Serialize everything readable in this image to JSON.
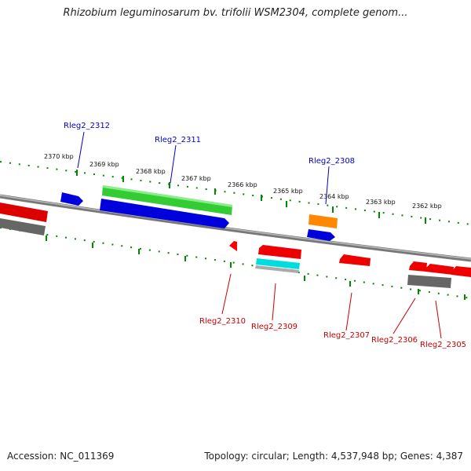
{
  "title": "Rhizobium leguminosarum bv. trifolii WSM2304, complete genom...",
  "accession": "Accession: NC_011369",
  "topology": "Topology: circular; Length: 4,537,948 bp; Genes: 4,387",
  "scale_labels": [
    "2370 kbp",
    "2369 kbp",
    "2368 kbp",
    "2367 kbp",
    "2366 kbp",
    "2365 kbp",
    "2364 kbp",
    "2363 kbp",
    "2362 kbp"
  ],
  "colors": {
    "forward_label": "#0000cc",
    "reverse_label": "#cc0000",
    "tick": "#008800",
    "backbone": "#888888"
  },
  "features": [
    {
      "name": "Rleg2_2312",
      "strand": "forward",
      "color": "#0000cc"
    },
    {
      "name": "Rleg2_2311",
      "strand": "forward",
      "color": "#0000cc"
    },
    {
      "name": "Rleg2_2308",
      "strand": "forward",
      "color": "#0000cc"
    },
    {
      "name": "Rleg2_2310",
      "strand": "reverse",
      "color": "#cc0000"
    },
    {
      "name": "Rleg2_2309",
      "strand": "reverse",
      "color": "#cc0000"
    },
    {
      "name": "Rleg2_2307",
      "strand": "reverse",
      "color": "#cc0000"
    },
    {
      "name": "Rleg2_2306",
      "strand": "reverse",
      "color": "#cc0000"
    },
    {
      "name": "Rleg2_2305",
      "strand": "reverse",
      "color": "#cc0000"
    }
  ]
}
